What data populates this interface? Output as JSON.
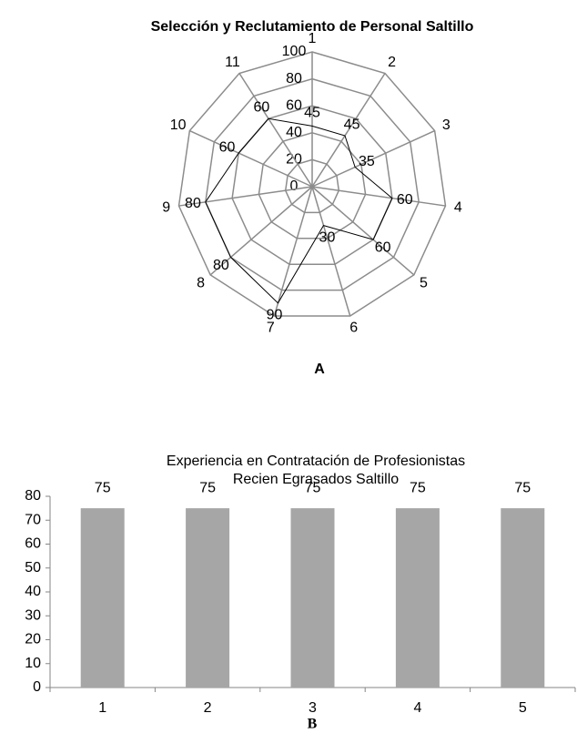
{
  "chart_data": [
    {
      "type": "radar",
      "title": "Selección y Reclutamiento de Personal Saltillo",
      "categories": [
        "1",
        "2",
        "3",
        "4",
        "5",
        "6",
        "7",
        "8",
        "9",
        "10",
        "11"
      ],
      "values": [
        45,
        45,
        35,
        60,
        60,
        30,
        90,
        80,
        80,
        60,
        60
      ],
      "rlim": [
        0,
        100
      ],
      "rticks": [
        0,
        20,
        40,
        60,
        80,
        100
      ],
      "color": "#000000",
      "grid_color": "#8c8c8c",
      "caption": "A"
    },
    {
      "type": "bar",
      "title": "Experiencia en Contratación de Profesionistas Recien Egrasados Saltillo",
      "categories": [
        "1",
        "2",
        "3",
        "4",
        "5"
      ],
      "values": [
        75,
        75,
        75,
        75,
        75
      ],
      "ylim": [
        0,
        80
      ],
      "yticks": [
        0,
        10,
        20,
        30,
        40,
        50,
        60,
        70,
        80
      ],
      "color": "#a6a6a6",
      "caption": "B"
    }
  ]
}
